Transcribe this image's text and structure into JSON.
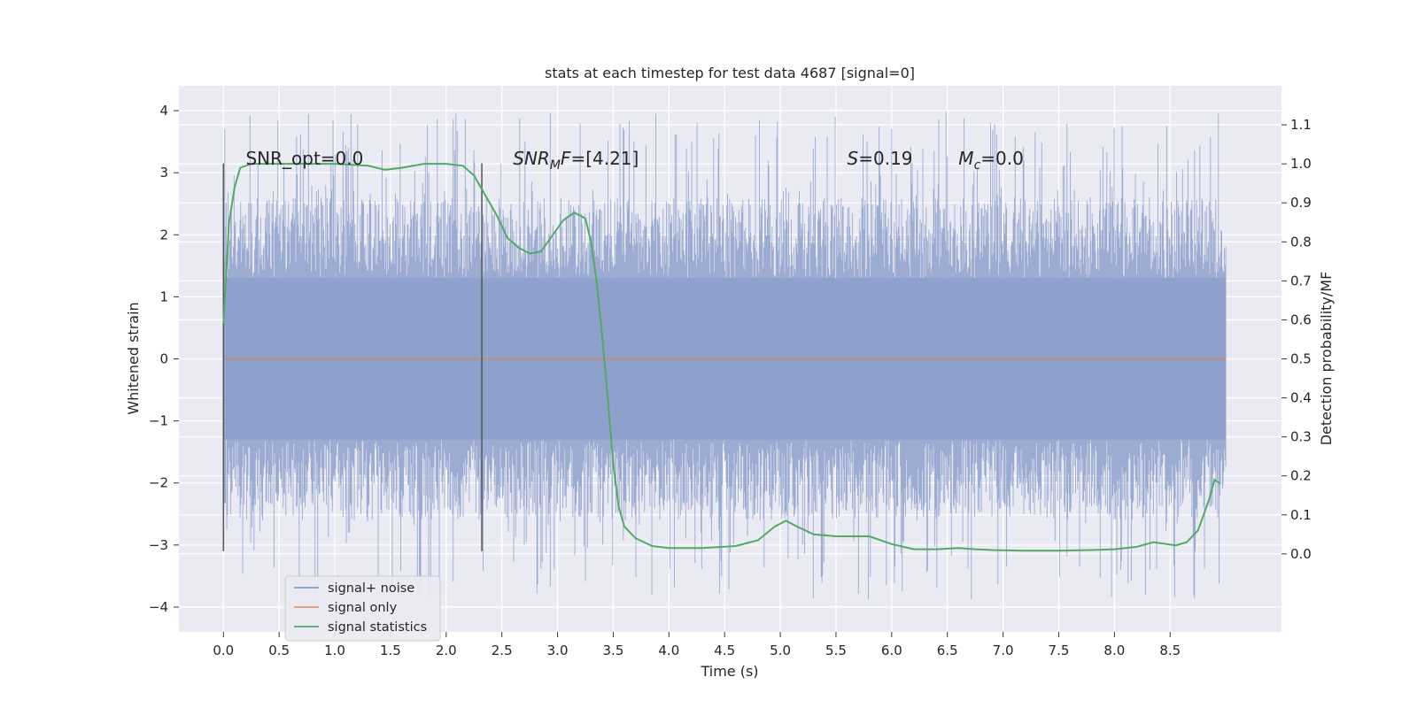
{
  "chart_data": {
    "type": "line",
    "title": "stats at each timestep for test data 4687 [signal=0]",
    "xlabel": "Time (s)",
    "ylabel_left": "Whitened strain",
    "ylabel_right": "Detection probability/MF",
    "xlim": [
      -0.4,
      9.5
    ],
    "ylim_left": [
      -4.4,
      4.4
    ],
    "ylim_right": [
      -0.2,
      1.2
    ],
    "x_ticks": [
      0.0,
      0.5,
      1.0,
      1.5,
      2.0,
      2.5,
      3.0,
      3.5,
      4.0,
      4.5,
      5.0,
      5.5,
      6.0,
      6.5,
      7.0,
      7.5,
      8.0,
      8.5
    ],
    "x_tick_labels": [
      "0.0",
      "0.5",
      "1.0",
      "1.5",
      "2.0",
      "2.5",
      "3.0",
      "3.5",
      "4.0",
      "4.5",
      "5.0",
      "5.5",
      "6.0",
      "6.5",
      "7.0",
      "7.5",
      "8.0",
      "8.5"
    ],
    "left_ticks": [
      4,
      3,
      2,
      1,
      0,
      -1,
      -2,
      -3,
      -4
    ],
    "left_tick_labels": [
      "4",
      "3",
      "2",
      "1",
      "0",
      "−1",
      "−2",
      "−3",
      "−4"
    ],
    "right_ticks": [
      1.1,
      1.0,
      0.9,
      0.8,
      0.7,
      0.6,
      0.5,
      0.4,
      0.3,
      0.2,
      0.1,
      0.0
    ],
    "right_tick_labels": [
      "1.1",
      "1.0",
      "0.9",
      "0.8",
      "0.7",
      "0.6",
      "0.5",
      "0.4",
      "0.3",
      "0.2",
      "0.1",
      "0.0"
    ],
    "grid": true,
    "legend_position": "lower-left",
    "series": [
      {
        "name": "signal+ noise",
        "axis": "left",
        "color": "#8da0cb",
        "x_range": [
          0.0,
          9.0
        ],
        "typical_range": [
          -1.3,
          1.3
        ],
        "peak_range": [
          -3.9,
          4.0
        ]
      },
      {
        "name": "signal only",
        "axis": "left",
        "color": "#dd8452",
        "x": [
          0.0,
          9.0
        ],
        "y": [
          0.0,
          0.0
        ]
      },
      {
        "name": "signal statistics",
        "axis": "right",
        "color": "#55a868",
        "x": [
          0.0,
          0.05,
          0.1,
          0.15,
          0.25,
          0.5,
          1.0,
          1.3,
          1.45,
          1.6,
          1.8,
          2.0,
          2.15,
          2.25,
          2.35,
          2.45,
          2.55,
          2.65,
          2.75,
          2.85,
          2.95,
          3.05,
          3.15,
          3.25,
          3.3,
          3.35,
          3.4,
          3.45,
          3.5,
          3.55,
          3.6,
          3.7,
          3.85,
          4.0,
          4.3,
          4.6,
          4.8,
          4.95,
          5.05,
          5.15,
          5.3,
          5.5,
          5.8,
          6.0,
          6.2,
          6.4,
          6.6,
          6.75,
          6.9,
          7.2,
          7.5,
          7.8,
          8.0,
          8.2,
          8.35,
          8.55,
          8.65,
          8.75,
          8.85,
          8.9,
          8.95
        ],
        "y": [
          0.59,
          0.85,
          0.94,
          0.99,
          1.0,
          1.0,
          1.0,
          0.995,
          0.985,
          0.99,
          1.0,
          1.0,
          0.995,
          0.97,
          0.92,
          0.87,
          0.81,
          0.785,
          0.77,
          0.775,
          0.815,
          0.855,
          0.875,
          0.86,
          0.8,
          0.7,
          0.56,
          0.4,
          0.23,
          0.12,
          0.07,
          0.04,
          0.02,
          0.015,
          0.015,
          0.02,
          0.035,
          0.07,
          0.085,
          0.07,
          0.05,
          0.045,
          0.045,
          0.025,
          0.012,
          0.012,
          0.015,
          0.012,
          0.01,
          0.008,
          0.008,
          0.01,
          0.012,
          0.018,
          0.03,
          0.022,
          0.03,
          0.06,
          0.14,
          0.19,
          0.18
        ]
      }
    ],
    "vertical_lines": [
      0.0,
      2.32
    ],
    "annotations": [
      {
        "id": "snr_opt",
        "x": 0.2,
        "y": 3.2,
        "text": "SNR_opt=0.0"
      },
      {
        "id": "snr_mf",
        "x": 2.6,
        "y": 3.2,
        "base": "SNR",
        "sub": "M",
        "suffix": "F",
        "value": "=[4.21]"
      },
      {
        "id": "s_val",
        "x": 5.6,
        "y": 3.2,
        "base": "S",
        "value": "=0.19"
      },
      {
        "id": "mc_val",
        "x": 6.6,
        "y": 3.2,
        "base": "M",
        "sub": "c",
        "value": "=0.0"
      }
    ],
    "legend": [
      "signal+ noise",
      "signal only",
      "signal statistics"
    ]
  }
}
